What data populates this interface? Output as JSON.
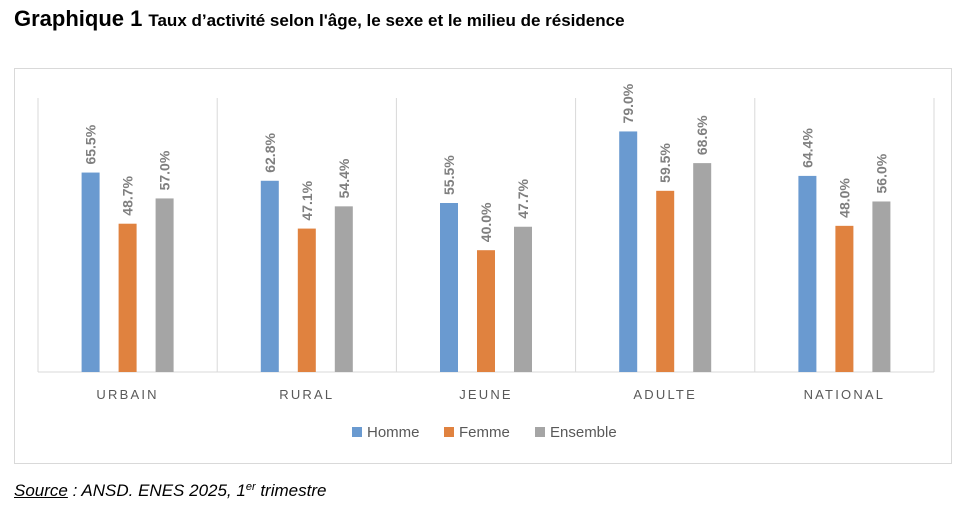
{
  "title": {
    "prefix": "Graphique 1",
    "text": "Taux d’activité selon l'âge, le sexe et le milieu de résidence"
  },
  "source": {
    "label": "Source",
    "text": " : ANSD. ENES 2025, 1",
    "sup": "er",
    "suffix": " trimestre"
  },
  "colors": {
    "Homme": "#6a9ad0",
    "Femme": "#e0823f",
    "Ensemble": "#a5a5a5",
    "label": "#7f7f7f"
  },
  "chart_data": {
    "type": "bar",
    "categories": [
      "URBAIN",
      "RURAL",
      "JEUNE",
      "ADULTE",
      "NATIONAL"
    ],
    "series": [
      {
        "name": "Homme",
        "values": [
          65.5,
          62.8,
          55.5,
          79.0,
          64.4
        ],
        "labels": [
          "65.5%",
          "62.8%",
          "55.5%",
          "79.0%",
          "64.4%"
        ]
      },
      {
        "name": "Femme",
        "values": [
          48.7,
          47.1,
          40.0,
          59.5,
          48.0
        ],
        "labels": [
          "48.7%",
          "47.1%",
          "40.0%",
          "59.5%",
          "48.0%"
        ]
      },
      {
        "name": "Ensemble",
        "values": [
          57.0,
          54.4,
          47.7,
          68.6,
          56.0
        ],
        "labels": [
          "57.0%",
          "54.4%",
          "47.7%",
          "68.6%",
          "56.0%"
        ]
      }
    ],
    "ylim": [
      0,
      80
    ],
    "legend": "bottom",
    "grid": false
  }
}
